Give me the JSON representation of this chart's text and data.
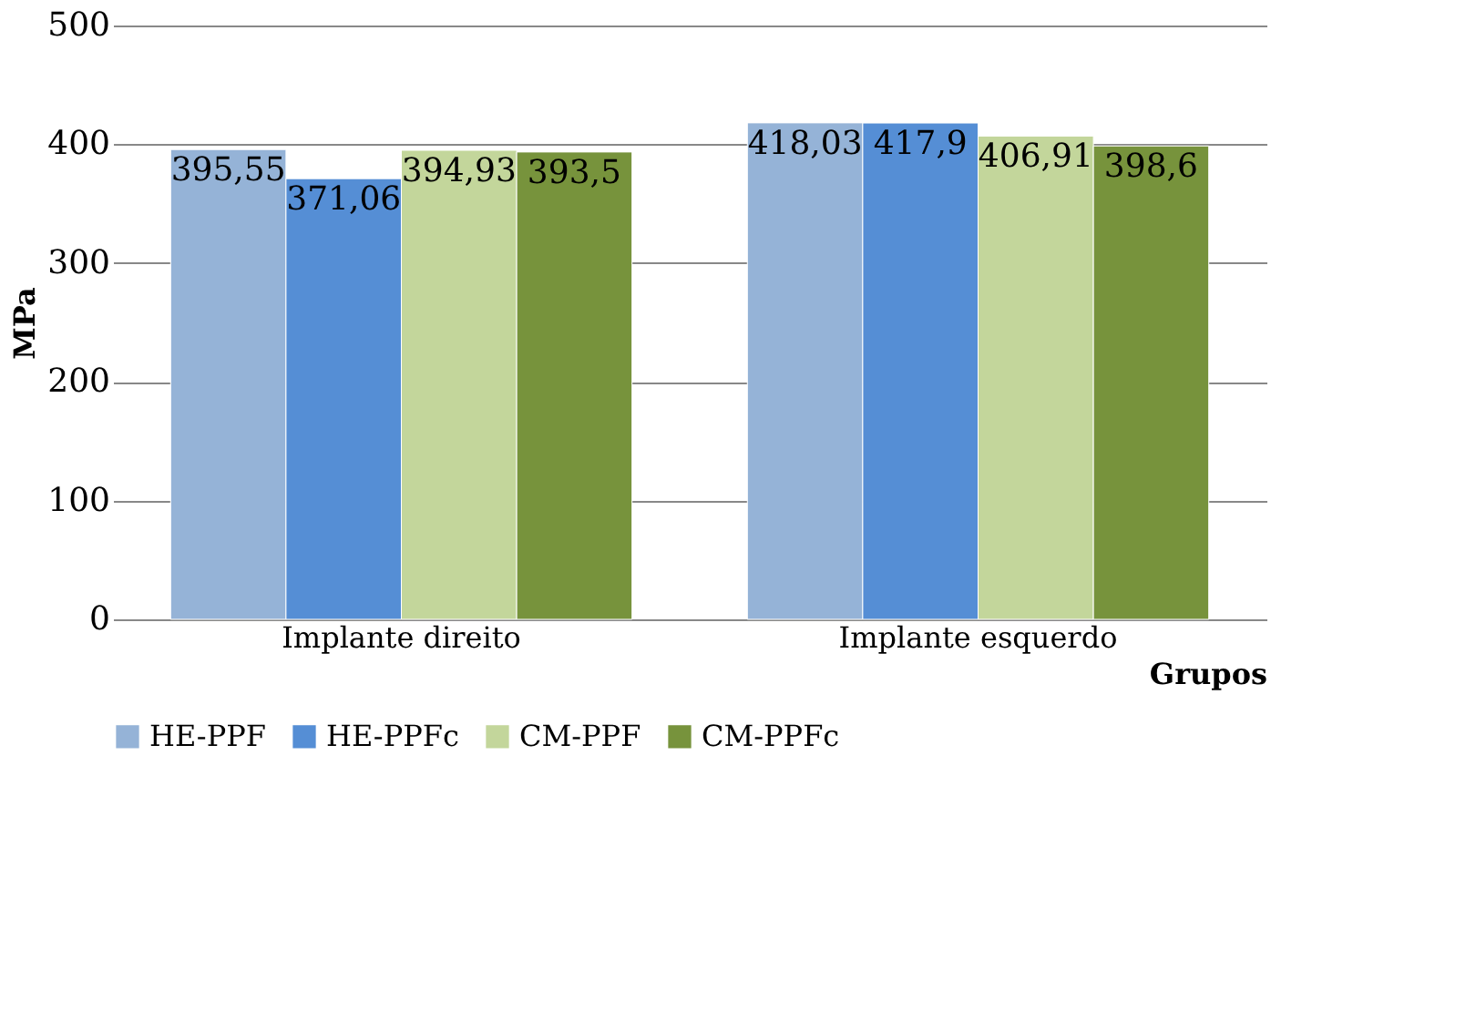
{
  "chart_data": {
    "type": "bar",
    "xlabel": "Grupos",
    "ylabel": "MPa",
    "categories": [
      "Implante direito",
      "Implante esquerdo"
    ],
    "series": [
      {
        "name": "HE-PPF",
        "color": "#95b3d7",
        "values": [
          395.55,
          418.03
        ],
        "value_labels": [
          "395,55",
          "418,03"
        ]
      },
      {
        "name": "HE-PPFc",
        "color": "#558ed5",
        "values": [
          371.06,
          417.9
        ],
        "value_labels": [
          "371,06",
          "417,9"
        ]
      },
      {
        "name": "CM-PPF",
        "color": "#c3d69b",
        "values": [
          394.93,
          406.91
        ],
        "value_labels": [
          "394,93",
          "406,91"
        ]
      },
      {
        "name": "CM-PPFc",
        "color": "#77933c",
        "values": [
          393.5,
          398.6
        ],
        "value_labels": [
          "393,5",
          "398,6"
        ]
      }
    ],
    "ylim": [
      0,
      500
    ],
    "yticks": [
      0,
      100,
      200,
      300,
      400,
      500
    ],
    "grid": "y",
    "legend": "bottom"
  }
}
